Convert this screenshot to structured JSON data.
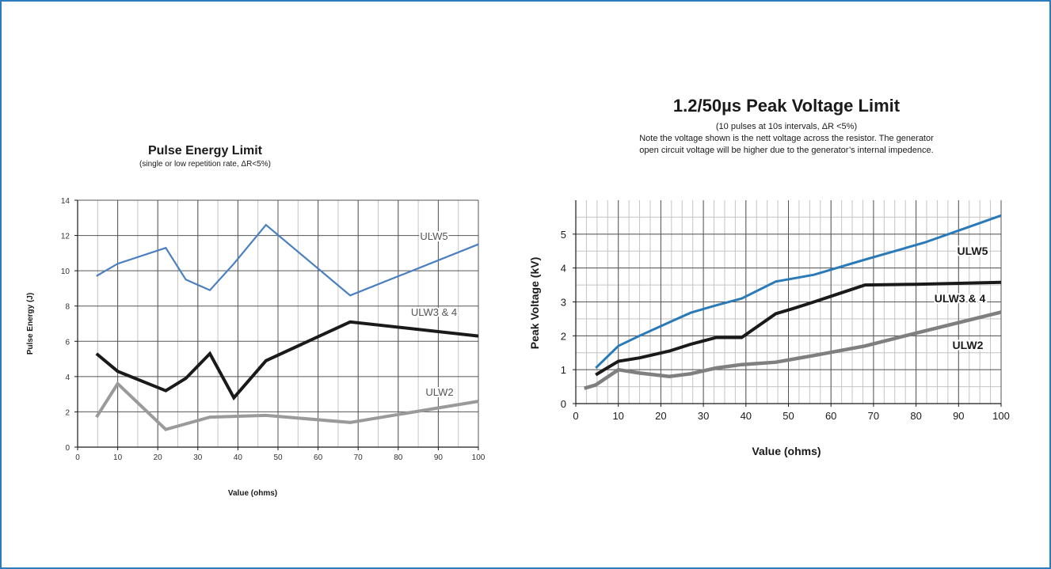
{
  "chart_data": [
    {
      "type": "line",
      "title": "Pulse Energy Limit",
      "subtitle": "(single or low repetition rate, ΔR<5%)",
      "xlabel": "Value (ohms)",
      "ylabel": "Pulse Energy (J)",
      "xlim": [
        0,
        100
      ],
      "ylim": [
        0,
        14
      ],
      "xticks": [
        0,
        10,
        20,
        30,
        40,
        50,
        60,
        70,
        80,
        90,
        100
      ],
      "yticks": [
        0,
        2,
        4,
        6,
        8,
        10,
        12,
        14
      ],
      "grid": true,
      "series": [
        {
          "name": "ULW5",
          "color": "#4a7fc0",
          "x": [
            4.7,
            10,
            22,
            27,
            33,
            39,
            47,
            68,
            100
          ],
          "y": [
            9.7,
            10.4,
            11.3,
            9.5,
            8.9,
            10.4,
            12.6,
            8.6,
            11.5
          ]
        },
        {
          "name": "ULW3 & 4",
          "color": "#1a1a1a",
          "x": [
            4.7,
            10,
            22,
            27,
            33,
            39,
            47,
            68,
            100
          ],
          "y": [
            5.3,
            4.3,
            3.2,
            3.9,
            5.3,
            2.8,
            4.9,
            7.1,
            6.3
          ]
        },
        {
          "name": "ULW2",
          "color": "#9a9a9a",
          "x": [
            4.7,
            10,
            22,
            33,
            47,
            68,
            100
          ],
          "y": [
            1.7,
            3.6,
            1.0,
            1.7,
            1.8,
            1.4,
            2.6
          ]
        }
      ]
    },
    {
      "type": "line",
      "title": "1.2/50µs Peak Voltage Limit",
      "subtitle": "(10 pulses at 10s intervals, ΔR <5%)",
      "note_line1": "Note the voltage shown is the nett voltage across the resistor. The generator",
      "note_line2": "open circuit voltage will be higher due to the generator’s internal impedence.",
      "xlabel": "Value (ohms)",
      "ylabel": "Peak Voltage (kV)",
      "xlim": [
        0,
        100
      ],
      "ylim": [
        0,
        6
      ],
      "xticks": [
        0,
        10,
        20,
        30,
        40,
        50,
        60,
        70,
        80,
        90,
        100
      ],
      "yticks": [
        0,
        1,
        2,
        3,
        4,
        5
      ],
      "grid": true,
      "series": [
        {
          "name": "ULW5",
          "color": "#2a7ab8",
          "x": [
            4.7,
            10,
            15,
            22,
            27,
            33,
            39,
            47,
            56,
            68,
            75,
            82,
            91,
            100
          ],
          "y": [
            1.05,
            1.7,
            2.0,
            2.4,
            2.68,
            2.9,
            3.1,
            3.6,
            3.8,
            4.25,
            4.5,
            4.75,
            5.15,
            5.55
          ]
        },
        {
          "name": "ULW3 & 4",
          "color": "#1a1a1a",
          "x": [
            4.7,
            10,
            15,
            22,
            27,
            33,
            39,
            47,
            51,
            56,
            62,
            68,
            80,
            100
          ],
          "y": [
            0.85,
            1.25,
            1.35,
            1.55,
            1.75,
            1.95,
            1.95,
            2.65,
            2.8,
            3.0,
            3.25,
            3.5,
            3.52,
            3.58
          ]
        },
        {
          "name": "ULW2",
          "color": "#7f7f7f",
          "x": [
            2,
            4.7,
            10,
            15,
            22,
            27,
            33,
            39,
            47,
            56,
            68,
            80,
            100
          ],
          "y": [
            0.45,
            0.55,
            1.0,
            0.9,
            0.8,
            0.88,
            1.05,
            1.15,
            1.22,
            1.42,
            1.7,
            2.08,
            2.7
          ]
        }
      ]
    }
  ]
}
